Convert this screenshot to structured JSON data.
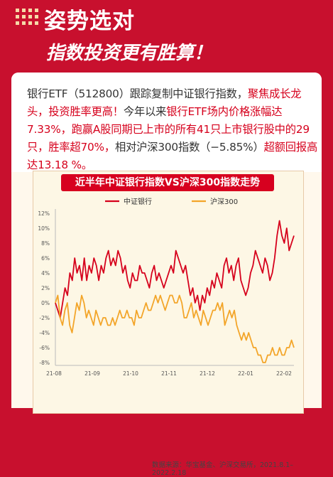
{
  "header": {
    "title": "姿势选对",
    "subtitle": "指数投资更有胜算！"
  },
  "paragraph": {
    "p1": "银行ETF（512800）跟踪复制中证银行指数，",
    "p2": "聚焦成长龙头，投资胜率更高！",
    "p3": "今年以来",
    "p4": "银行ETF场内价格涨幅达7.33%，跑赢A股同期已上市的所有41只上市银行股中的29只，胜率超70%，",
    "p5": "相对沪深300指数（−5.85%）",
    "p6": "超额回报高达13.18 %。"
  },
  "source": "数据来源：华宝基金、沪深交易所，2021.8.1–2022.2.18",
  "colors": {
    "bank": "#d6001c",
    "hs300": "#f3a529",
    "bg": "#c8102e"
  },
  "chart_data": {
    "type": "line",
    "title": "近半年中证银行指数VS沪深300指数走势",
    "xlabel": "",
    "ylabel": "",
    "x_ticks": [
      "21-08",
      "21-09",
      "21-10",
      "21-11",
      "21-12",
      "22-01",
      "22-02"
    ],
    "ylim": [
      -8,
      12
    ],
    "y_ticks": [
      "12%",
      "10%",
      "8%",
      "6%",
      "4%",
      "2%",
      "0%",
      "-2%",
      "-4%",
      "-6%",
      "-8%"
    ],
    "legend": "top-left",
    "grid": false,
    "series": [
      {
        "name": "中证银行",
        "color": "#d6001c",
        "values": [
          0,
          -1,
          -2,
          0,
          2,
          1,
          4,
          3,
          6,
          4,
          5,
          3,
          6,
          3,
          5,
          4,
          6,
          5,
          3,
          5,
          4,
          6,
          7,
          5,
          6,
          5,
          7,
          6,
          4,
          5,
          3,
          2,
          4,
          3,
          3,
          5,
          4,
          4,
          3,
          2,
          4,
          5,
          3,
          4,
          3,
          2,
          3,
          4,
          5,
          4,
          7,
          6,
          5,
          4,
          5,
          3,
          1,
          2,
          0,
          1,
          -1,
          1,
          0,
          2,
          1,
          3,
          2,
          4,
          3,
          2,
          5,
          6,
          4,
          5,
          3,
          5,
          6,
          3,
          2,
          1,
          2,
          4,
          5,
          7,
          6,
          5,
          4,
          6,
          5,
          3,
          4,
          6,
          9,
          11,
          9,
          8,
          10,
          7,
          8,
          9
        ]
      },
      {
        "name": "沪深300",
        "color": "#f3a529",
        "values": [
          0,
          1,
          -2,
          -3,
          -1,
          0,
          -3,
          -4,
          -2,
          0,
          -1,
          1,
          0,
          -2,
          -1,
          -2,
          -3,
          -1,
          -2,
          -3,
          -2,
          -2,
          -3,
          -3,
          -2,
          -3,
          -2,
          -1,
          -2,
          -2,
          -1,
          -2,
          -2,
          -3,
          -1,
          -2,
          -2,
          -1,
          0,
          -1,
          -1,
          0,
          1,
          0,
          1,
          0,
          -1,
          0,
          1,
          1,
          0,
          0,
          1,
          0,
          -2,
          -2,
          -1,
          0,
          -2,
          -1,
          -2,
          -3,
          -1,
          -2,
          -3,
          -2,
          -1,
          -1,
          0,
          -1,
          0,
          -3,
          -2,
          -1,
          -2,
          -1,
          -3,
          -4,
          -5,
          -4,
          -5,
          -4,
          -5,
          -6,
          -6,
          -7,
          -7,
          -8,
          -8,
          -7,
          -7,
          -6,
          -7,
          -7,
          -6,
          -7,
          -7,
          -6,
          -6,
          -5,
          -6
        ]
      }
    ]
  }
}
